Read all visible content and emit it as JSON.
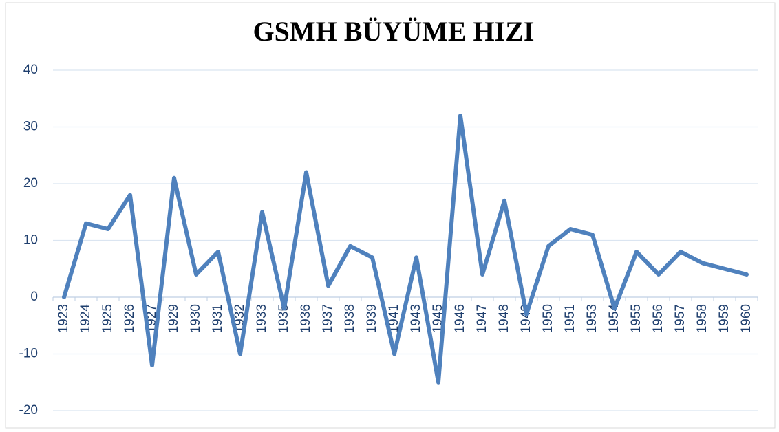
{
  "chart_data": {
    "type": "line",
    "title": "GSMH BÜYÜME HIZI",
    "categories": [
      "1923",
      "1924",
      "1925",
      "1926",
      "1927",
      "1929",
      "1930",
      "1931",
      "1932",
      "1933",
      "1935",
      "1936",
      "1937",
      "1938",
      "1939",
      "1941",
      "1943",
      "1945",
      "1946",
      "1947",
      "1948",
      "1949",
      "1950",
      "1951",
      "1953",
      "1954",
      "1955",
      "1956",
      "1957",
      "1958",
      "1959",
      "1960"
    ],
    "values": [
      0,
      13,
      12,
      18,
      -12,
      21,
      4,
      8,
      -10,
      15,
      -2,
      22,
      2,
      9,
      7,
      -10,
      7,
      -15,
      32,
      4,
      17,
      -3,
      9,
      12,
      11,
      -2,
      8,
      4,
      8,
      6,
      5,
      4
    ],
    "color": "#4f81bd",
    "ylim": [
      -20,
      40
    ],
    "yticks": [
      -20,
      -10,
      0,
      10,
      20,
      30,
      40
    ],
    "grid": true
  }
}
